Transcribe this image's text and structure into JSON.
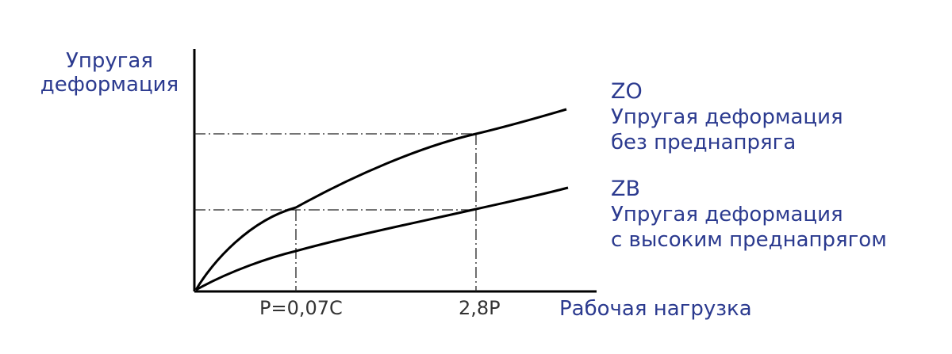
{
  "axis": {
    "y_label_line1": "Упругая",
    "y_label_line2": "деформация",
    "x_label": "Рабочая нагрузка"
  },
  "ticks": {
    "p": "P=0,07C",
    "p28": "2,8P"
  },
  "legend": {
    "zo": {
      "code": "ZO",
      "line1": "Упругая деформация",
      "line2": "без преднапряга"
    },
    "zb": {
      "code": "ZB",
      "line1": "Упругая деформация",
      "line2": "с высоким преднапрягом"
    }
  },
  "colors": {
    "text": "#2b3a8f",
    "lines": "#000000"
  }
}
